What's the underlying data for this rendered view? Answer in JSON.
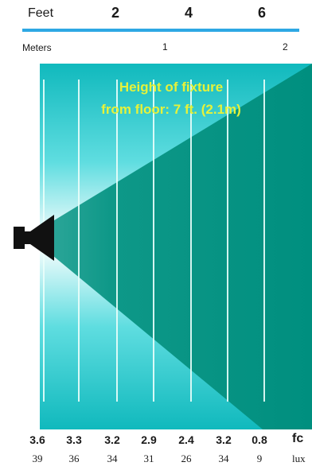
{
  "distance_scale": {
    "feet_label": "Feet",
    "feet_ticks": [
      "2",
      "4",
      "6"
    ],
    "meters_label": "Meters",
    "meter_ticks": [
      "1",
      "2"
    ]
  },
  "fixture": {
    "caption_line1": "Height of fixture",
    "caption_line2": "from floor: 7 ft. (2.1m)",
    "icon": "speaker-icon"
  },
  "readings": {
    "fc": [
      "3.6",
      "3.3",
      "3.2",
      "2.9",
      "2.4",
      "3.2",
      "0.8"
    ],
    "lux": [
      "39",
      "36",
      "34",
      "31",
      "26",
      "34",
      "9"
    ],
    "fc_unit": "fc",
    "lux_unit": "lux"
  },
  "colors": {
    "cone_dark": "#008f7f",
    "background_light": "#22c8d0",
    "scale_bar": "#2ea8e4",
    "caption": "#e6f23a"
  }
}
